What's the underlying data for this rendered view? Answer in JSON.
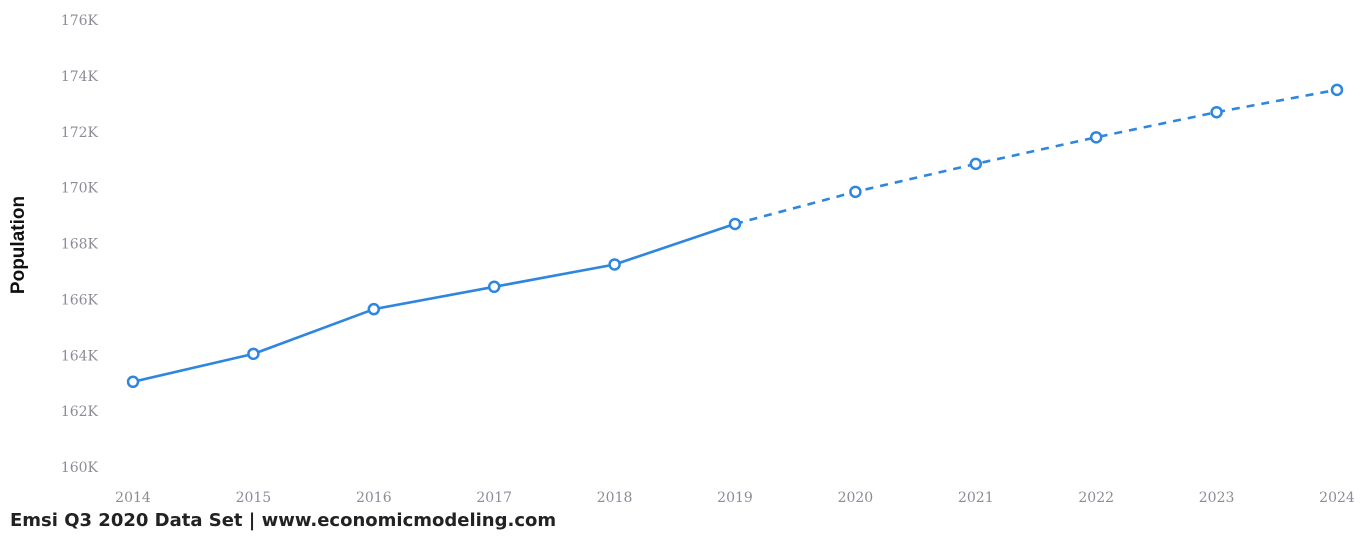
{
  "chart_data": {
    "type": "line",
    "xlabel": "",
    "ylabel": "Population",
    "ylim": [
      160000,
      176000
    ],
    "y_ticks": [
      160000,
      162000,
      164000,
      166000,
      168000,
      170000,
      172000,
      174000,
      176000
    ],
    "y_tick_labels": [
      "160K",
      "162K",
      "164K",
      "166K",
      "168K",
      "170K",
      "172K",
      "174K",
      "176K"
    ],
    "x": [
      "2014",
      "2015",
      "2016",
      "2017",
      "2018",
      "2019",
      "2020",
      "2021",
      "2022",
      "2023",
      "2024"
    ],
    "x_tick_labels": [
      "2014",
      "2015",
      "2016",
      "2017",
      "2018",
      "2019",
      "2020",
      "2021",
      "2022",
      "2023",
      "2024"
    ],
    "series": [
      {
        "values": [
          163050,
          164050,
          165650,
          166450,
          167250,
          168700,
          169850,
          170850,
          171800,
          172700,
          173500
        ],
        "style": "solid through 2019, dashed projection 2019-2024",
        "color": "#2e86de"
      }
    ],
    "grid": false,
    "legend": "none"
  },
  "footer": {
    "source": "Emsi Q3 2020 Data Set | www.economicmodeling.com"
  }
}
